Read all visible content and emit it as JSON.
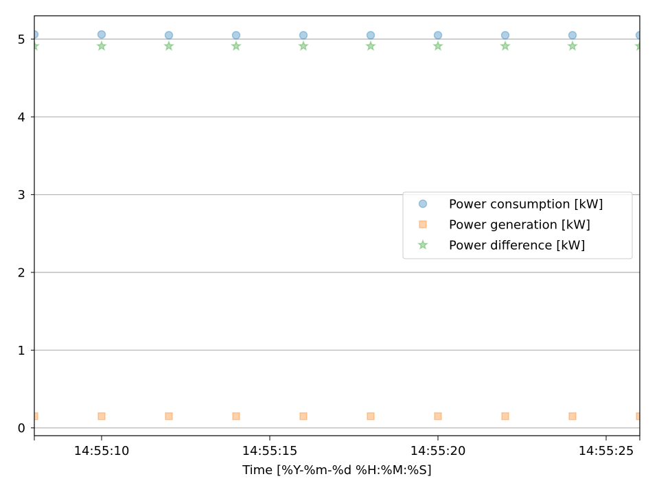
{
  "chart_data": {
    "type": "scatter",
    "title": "",
    "xlabel": "Time [%Y-%m-%d %H:%M:%S]",
    "ylabel": "",
    "x": [
      "14:55:08",
      "14:55:10",
      "14:55:12",
      "14:55:14",
      "14:55:16",
      "14:55:18",
      "14:55:20",
      "14:55:22",
      "14:55:24",
      "14:55:26"
    ],
    "xlim": [
      "14:55:08",
      "14:55:26"
    ],
    "xticks": [
      "14:55:10",
      "14:55:15",
      "14:55:20",
      "14:55:25"
    ],
    "ylim": [
      -0.1,
      5.3
    ],
    "yticks": [
      0,
      1,
      2,
      3,
      4,
      5
    ],
    "grid": "horizontal",
    "legend_position": "center-right",
    "series": [
      {
        "name": "Power consumption [kW]",
        "marker": "circle",
        "color": "#1f77b4",
        "values": [
          5.06,
          5.06,
          5.05,
          5.05,
          5.05,
          5.05,
          5.05,
          5.05,
          5.05,
          5.05
        ]
      },
      {
        "name": "Power generation [kW]",
        "marker": "square",
        "color": "#ff7f0e",
        "values": [
          0.15,
          0.15,
          0.15,
          0.15,
          0.15,
          0.15,
          0.15,
          0.15,
          0.15,
          0.15
        ]
      },
      {
        "name": "Power difference [kW]",
        "marker": "star",
        "color": "#2ca02c",
        "values": [
          4.91,
          4.91,
          4.91,
          4.91,
          4.91,
          4.91,
          4.91,
          4.91,
          4.91,
          4.91
        ]
      }
    ]
  }
}
